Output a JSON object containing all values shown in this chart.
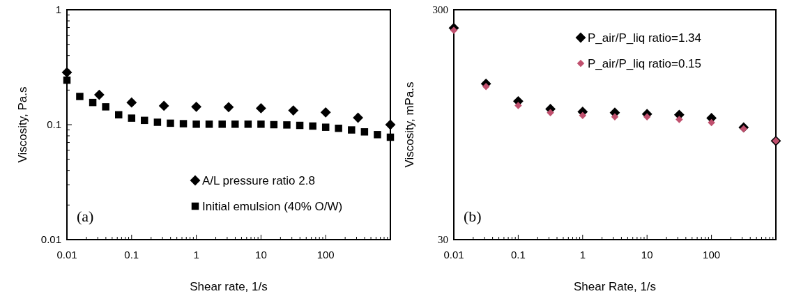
{
  "chart_data": [
    {
      "type": "scatter",
      "xlabel": "Shear rate, 1/s",
      "ylabel": "Viscosity, Pa.s",
      "log": "xy",
      "legend": "bottom right",
      "annotations": [
        "(a)"
      ],
      "xlim": [
        0.01,
        1000
      ],
      "ylim": [
        0.01,
        1
      ],
      "xticks": [
        0.01,
        {
          "value": 0.02,
          "label": null
        },
        {
          "value": 0.03,
          "label": null
        },
        {
          "value": 0.04,
          "label": null
        },
        {
          "value": 0.05,
          "label": null
        },
        {
          "value": 0.06,
          "label": null
        },
        {
          "value": 0.07,
          "label": null
        },
        {
          "value": 0.08,
          "label": null
        },
        {
          "value": 0.09,
          "label": null
        },
        0.1,
        {
          "value": 0.2,
          "label": null
        },
        {
          "value": 0.3,
          "label": null
        },
        {
          "value": 0.4,
          "label": null
        },
        {
          "value": 0.5,
          "label": null
        },
        {
          "value": 0.6,
          "label": null
        },
        {
          "value": 0.7,
          "label": null
        },
        {
          "value": 0.8,
          "label": null
        },
        {
          "value": 0.9,
          "label": null
        },
        1,
        {
          "value": 2,
          "label": null
        },
        {
          "value": 3,
          "label": null
        },
        {
          "value": 4,
          "label": null
        },
        {
          "value": 5,
          "label": null
        },
        {
          "value": 6,
          "label": null
        },
        {
          "value": 7,
          "label": null
        },
        {
          "value": 8,
          "label": null
        },
        {
          "value": 9,
          "label": null
        },
        10,
        {
          "value": 20,
          "label": null
        },
        {
          "value": 30,
          "label": null
        },
        {
          "value": 40,
          "label": null
        },
        {
          "value": 50,
          "label": null
        },
        {
          "value": 60,
          "label": null
        },
        {
          "value": 70,
          "label": null
        },
        {
          "value": 80,
          "label": null
        },
        {
          "value": 90,
          "label": null
        },
        100,
        {
          "value": 200,
          "label": null
        },
        {
          "value": 300,
          "label": null
        },
        {
          "value": 400,
          "label": null
        },
        {
          "value": 500,
          "label": null
        },
        {
          "value": 600,
          "label": null
        },
        {
          "value": 700,
          "label": null
        },
        {
          "value": 800,
          "label": null
        },
        {
          "value": 900,
          "label": null
        },
        {
          "value": 1000,
          "label": null
        }
      ],
      "yticks": [
        0.01,
        {
          "value": 0.02,
          "label": null
        },
        {
          "value": 0.03,
          "label": null
        },
        {
          "value": 0.04,
          "label": null
        },
        {
          "value": 0.05,
          "label": null
        },
        {
          "value": 0.06,
          "label": null
        },
        {
          "value": 0.07,
          "label": null
        },
        {
          "value": 0.08,
          "label": null
        },
        {
          "value": 0.09,
          "label": null
        },
        0.1,
        {
          "value": 0.2,
          "label": null
        },
        {
          "value": 0.3,
          "label": null
        },
        {
          "value": 0.4,
          "label": null
        },
        {
          "value": 0.5,
          "label": null
        },
        {
          "value": 0.6,
          "label": null
        },
        {
          "value": 0.7,
          "label": null
        },
        {
          "value": 0.8,
          "label": null
        },
        {
          "value": 0.9,
          "label": null
        },
        1
      ],
      "series": [
        {
          "name": "A/L pressure ratio 2.8",
          "color": "#000000",
          "marker": "diamond",
          "x": [
            0.01,
            0.0316,
            0.1,
            0.316,
            1,
            3.16,
            10,
            31.6,
            100,
            316,
            1000
          ],
          "values": [
            0.285,
            0.182,
            0.156,
            0.146,
            0.143,
            0.142,
            0.139,
            0.133,
            0.128,
            0.115,
            0.1
          ]
        },
        {
          "name": "Initial emulsion (40% O/W)",
          "color": "#000000",
          "marker": "square",
          "x": [
            0.01,
            0.0158,
            0.0251,
            0.0398,
            0.0631,
            0.1,
            0.158,
            0.251,
            0.398,
            0.631,
            1,
            1.58,
            2.51,
            3.98,
            6.31,
            10,
            15.8,
            25.1,
            39.8,
            63.1,
            100,
            158,
            251,
            398,
            631,
            1000
          ],
          "values": [
            0.244,
            0.176,
            0.156,
            0.143,
            0.122,
            0.114,
            0.109,
            0.105,
            0.103,
            0.102,
            0.101,
            0.101,
            0.101,
            0.101,
            0.101,
            0.101,
            0.1,
            0.0995,
            0.0986,
            0.0973,
            0.095,
            0.093,
            0.09,
            0.0866,
            0.0819,
            0.0778
          ]
        }
      ]
    },
    {
      "type": "scatter",
      "xlabel": "Shear Rate, 1/s",
      "ylabel": "Viscosity, mPa.s",
      "log": "xy",
      "legend": "top right",
      "annotations": [
        "(b)"
      ],
      "xlim": [
        0.01,
        1000
      ],
      "ylim": [
        30,
        300
      ],
      "xticks": [
        0.01,
        {
          "value": 0.02,
          "label": null
        },
        {
          "value": 0.03,
          "label": null
        },
        {
          "value": 0.04,
          "label": null
        },
        {
          "value": 0.05,
          "label": null
        },
        {
          "value": 0.06,
          "label": null
        },
        {
          "value": 0.07,
          "label": null
        },
        {
          "value": 0.08,
          "label": null
        },
        {
          "value": 0.09,
          "label": null
        },
        0.1,
        {
          "value": 0.2,
          "label": null
        },
        {
          "value": 0.3,
          "label": null
        },
        {
          "value": 0.4,
          "label": null
        },
        {
          "value": 0.5,
          "label": null
        },
        {
          "value": 0.6,
          "label": null
        },
        {
          "value": 0.7,
          "label": null
        },
        {
          "value": 0.8,
          "label": null
        },
        {
          "value": 0.9,
          "label": null
        },
        1,
        {
          "value": 2,
          "label": null
        },
        {
          "value": 3,
          "label": null
        },
        {
          "value": 4,
          "label": null
        },
        {
          "value": 5,
          "label": null
        },
        {
          "value": 6,
          "label": null
        },
        {
          "value": 7,
          "label": null
        },
        {
          "value": 8,
          "label": null
        },
        {
          "value": 9,
          "label": null
        },
        10,
        {
          "value": 20,
          "label": null
        },
        {
          "value": 30,
          "label": null
        },
        {
          "value": 40,
          "label": null
        },
        {
          "value": 50,
          "label": null
        },
        {
          "value": 60,
          "label": null
        },
        {
          "value": 70,
          "label": null
        },
        {
          "value": 80,
          "label": null
        },
        {
          "value": 90,
          "label": null
        },
        100,
        {
          "value": 200,
          "label": null
        },
        {
          "value": 300,
          "label": null
        },
        {
          "value": 400,
          "label": null
        },
        {
          "value": 500,
          "label": null
        },
        {
          "value": 600,
          "label": null
        },
        {
          "value": 700,
          "label": null
        },
        {
          "value": 800,
          "label": null
        },
        {
          "value": 900,
          "label": null
        },
        {
          "value": 1000,
          "label": null
        }
      ],
      "yticks": [
        30,
        300
      ],
      "series": [
        {
          "name": "P_air/P_liq ratio=1.34",
          "color": "#000000",
          "marker": "diamond",
          "x": [
            0.01,
            0.0316,
            0.1,
            0.316,
            1,
            3.16,
            10,
            31.6,
            100,
            316,
            1000
          ],
          "values": [
            250,
            143,
            120,
            111,
            108,
            107,
            105.5,
            104.7,
            101.4,
            92.3,
            80.6
          ]
        },
        {
          "name": "P_air/P_liq ratio=0.15",
          "color": "#c0506e",
          "marker": "diamond",
          "x": [
            0.01,
            0.0316,
            0.1,
            0.316,
            1,
            3.16,
            10,
            31.6,
            100,
            316,
            1000
          ],
          "values": [
            244,
            139,
            115,
            107,
            104,
            102.6,
            102.6,
            100,
            96.9,
            91,
            80.6
          ]
        }
      ]
    }
  ]
}
